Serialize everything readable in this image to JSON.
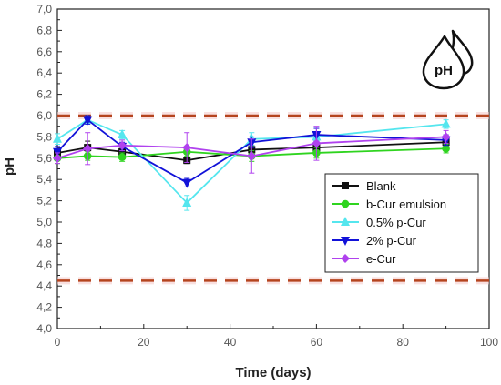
{
  "chart_data": {
    "type": "line",
    "xlabel": "Time (days)",
    "ylabel": "pH",
    "xlim": [
      0,
      100
    ],
    "ylim": [
      4.0,
      7.0
    ],
    "x_ticks": [
      "0",
      "20",
      "40",
      "60",
      "80",
      "100"
    ],
    "y_ticks": [
      "4,0",
      "4,2",
      "4,4",
      "4,6",
      "4,8",
      "5,0",
      "5,2",
      "5,4",
      "5,6",
      "5,8",
      "6,0",
      "6,2",
      "6,4",
      "6,6",
      "6,8",
      "7,0"
    ],
    "grid": false,
    "legend_position": "center-right",
    "reference_lines": [
      {
        "y": 6.0,
        "color": "#b5441e",
        "style": "dashed"
      },
      {
        "y": 4.45,
        "color": "#b5441e",
        "style": "dashed"
      }
    ],
    "x": [
      0,
      7,
      15,
      30,
      45,
      60,
      90
    ],
    "series": [
      {
        "name": "Blank",
        "color": "#111111",
        "marker": "square",
        "values": [
          5.65,
          5.7,
          5.66,
          5.58,
          5.68,
          5.7,
          5.75
        ],
        "errors": [
          0.04,
          0.06,
          0.03,
          0.03,
          0.04,
          0.04,
          0.04
        ]
      },
      {
        "name": "b-Cur emulsion",
        "color": "#2fd41f",
        "marker": "circle",
        "values": [
          5.6,
          5.62,
          5.61,
          5.66,
          5.62,
          5.65,
          5.69
        ],
        "errors": [
          0.05,
          0.04,
          0.04,
          0.04,
          0.05,
          0.05,
          0.04
        ]
      },
      {
        "name": "0.5% p-Cur",
        "color": "#55e6ee",
        "marker": "triangle-up",
        "values": [
          5.78,
          5.96,
          5.82,
          5.18,
          5.78,
          5.8,
          5.92
        ],
        "errors": [
          0.05,
          0.04,
          0.04,
          0.07,
          0.06,
          0.05,
          0.04
        ]
      },
      {
        "name": "2% p-Cur",
        "color": "#1212d8",
        "marker": "triangle-down",
        "values": [
          5.66,
          5.96,
          5.71,
          5.37,
          5.75,
          5.82,
          5.77
        ],
        "errors": [
          0.05,
          0.04,
          0.04,
          0.04,
          0.05,
          0.06,
          0.05
        ]
      },
      {
        "name": "e-Cur",
        "color": "#b042ee",
        "marker": "diamond",
        "values": [
          5.6,
          5.69,
          5.72,
          5.7,
          5.62,
          5.74,
          5.8
        ],
        "errors": [
          0.05,
          0.15,
          0.05,
          0.14,
          0.16,
          0.16,
          0.06
        ]
      }
    ]
  },
  "badge": {
    "text": "pH",
    "icon": "water-drops-icon"
  }
}
